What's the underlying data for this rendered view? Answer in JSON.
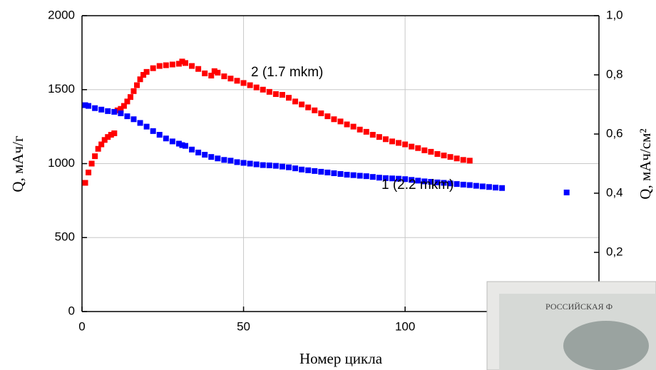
{
  "chart_data": {
    "type": "scatter",
    "x_label": "Номер цикла",
    "y_label": "Q, мАч/г",
    "y2_label": "Q, мАч/см²",
    "xlim": [
      0,
      160
    ],
    "xticks": [
      0,
      50,
      100
    ],
    "ylim": [
      0,
      2000
    ],
    "yticks": [
      0,
      500,
      1000,
      1500,
      2000
    ],
    "y2lim": [
      0,
      1.0
    ],
    "y2ticks": [
      {
        "value": 0.2,
        "label": "0,2"
      },
      {
        "value": 0.4,
        "label": "0,4"
      },
      {
        "value": 0.6,
        "label": "0,6"
      },
      {
        "value": 0.8,
        "label": "0,8"
      },
      {
        "value": 1.0,
        "label": "1,0"
      }
    ],
    "grid": true,
    "annotations": [
      "2 (1.7 mkm)",
      "1 (2.2 mkm)"
    ],
    "series": [
      {
        "name": "2 (1.7 mkm)",
        "color": "#ff0000",
        "x": [
          1,
          2,
          3,
          4,
          5,
          6,
          7,
          8,
          9,
          10,
          11,
          12,
          13,
          14,
          15,
          16,
          17,
          18,
          19,
          20,
          22,
          24,
          26,
          28,
          30,
          31,
          32,
          34,
          36,
          38,
          40,
          41,
          42,
          44,
          46,
          48,
          50,
          52,
          54,
          56,
          58,
          60,
          62,
          64,
          66,
          68,
          70,
          72,
          74,
          76,
          78,
          80,
          82,
          84,
          86,
          88,
          90,
          92,
          94,
          96,
          98,
          100,
          102,
          104,
          106,
          108,
          110,
          112,
          114,
          116,
          118,
          120
        ],
        "values": [
          870,
          940,
          1000,
          1050,
          1100,
          1130,
          1160,
          1180,
          1195,
          1205,
          1360,
          1370,
          1390,
          1420,
          1450,
          1490,
          1530,
          1570,
          1600,
          1620,
          1645,
          1660,
          1665,
          1670,
          1675,
          1690,
          1680,
          1660,
          1640,
          1610,
          1595,
          1625,
          1615,
          1590,
          1575,
          1560,
          1545,
          1530,
          1515,
          1500,
          1485,
          1470,
          1465,
          1445,
          1420,
          1400,
          1380,
          1360,
          1340,
          1320,
          1300,
          1285,
          1265,
          1250,
          1230,
          1215,
          1195,
          1180,
          1165,
          1150,
          1140,
          1130,
          1115,
          1105,
          1090,
          1080,
          1065,
          1055,
          1045,
          1035,
          1025,
          1020
        ]
      },
      {
        "name": "1 (2.2 mkm)",
        "color": "#0000ff",
        "x": [
          1,
          2,
          4,
          6,
          8,
          10,
          12,
          14,
          16,
          18,
          20,
          22,
          24,
          26,
          28,
          30,
          31,
          32,
          34,
          36,
          38,
          40,
          42,
          44,
          46,
          48,
          50,
          52,
          54,
          56,
          58,
          60,
          62,
          64,
          66,
          68,
          70,
          72,
          74,
          76,
          78,
          80,
          82,
          84,
          86,
          88,
          90,
          92,
          94,
          96,
          98,
          100,
          102,
          104,
          106,
          108,
          110,
          112,
          114,
          116,
          118,
          120,
          122,
          124,
          126,
          128,
          130,
          150
        ],
        "values": [
          1395,
          1390,
          1375,
          1365,
          1355,
          1350,
          1340,
          1320,
          1300,
          1275,
          1250,
          1220,
          1195,
          1170,
          1150,
          1135,
          1125,
          1120,
          1095,
          1075,
          1060,
          1045,
          1035,
          1025,
          1020,
          1010,
          1005,
          1000,
          995,
          990,
          988,
          985,
          980,
          975,
          968,
          960,
          955,
          950,
          945,
          940,
          935,
          930,
          925,
          922,
          918,
          915,
          910,
          905,
          902,
          900,
          898,
          895,
          890,
          885,
          880,
          877,
          873,
          870,
          866,
          862,
          858,
          855,
          850,
          846,
          842,
          838,
          835,
          805
        ]
      }
    ]
  },
  "overlay": {
    "text": "РОССИЙСКАЯ Ф"
  }
}
